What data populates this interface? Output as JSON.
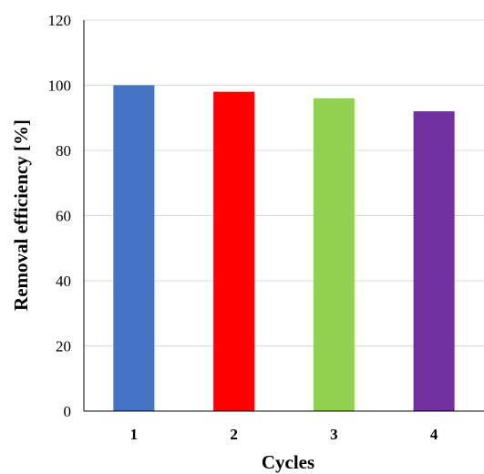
{
  "chart_data": {
    "type": "bar",
    "title": "",
    "xlabel": "Cycles",
    "ylabel": "Removal efficiency [%]",
    "categories": [
      "1",
      "2",
      "3",
      "4"
    ],
    "values": [
      100,
      98,
      96,
      92
    ],
    "colors": [
      "#4472C4",
      "#FF0000",
      "#92D050",
      "#7030A0"
    ],
    "ylim": [
      0,
      120
    ],
    "yticks": [
      "0",
      "20",
      "40",
      "60",
      "80",
      "100",
      "120"
    ],
    "grid": true,
    "legend": "none"
  }
}
